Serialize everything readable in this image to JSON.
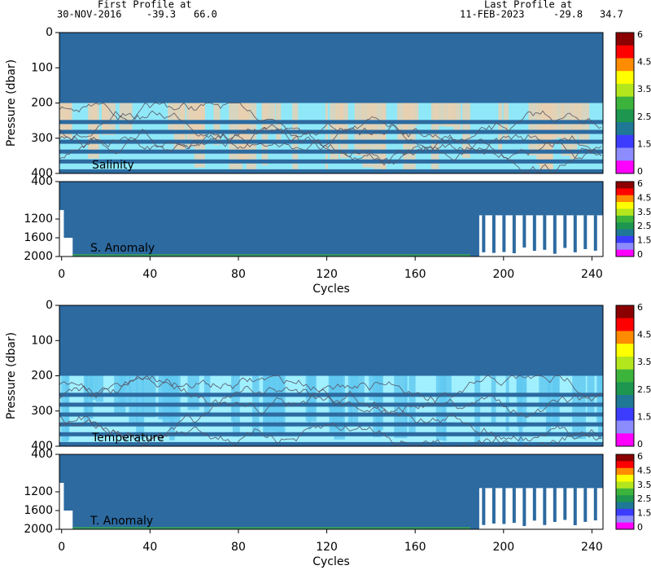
{
  "header": {
    "first_label": "First Profile at",
    "first_date": "30-NOV-2016",
    "first_lat": "-39.3",
    "first_lon": "66.0",
    "last_label": "Last Profile at",
    "last_date": "11-FEB-2023",
    "last_lat": "-29.8",
    "last_lon": "34.7"
  },
  "chart_data": [
    {
      "type": "contour",
      "label": "Salinity",
      "ylabel": "Pressure (dbar)",
      "ylim": [
        0,
        400
      ],
      "y_inverted": true,
      "yticks": [
        0,
        100,
        200,
        300,
        400
      ],
      "xlim": [
        -1,
        245
      ],
      "colorbar": {
        "ticks": [
          6,
          4.5,
          3.5,
          2.5,
          1.5,
          0
        ],
        "colors": [
          "#8b0000",
          "#ff0000",
          "#ff8c00",
          "#ffff00",
          "#b4e61e",
          "#3cb43c",
          "#1e9650",
          "#1e7896",
          "#3c3cff",
          "#8c8cff",
          "#ff00ff"
        ]
      },
      "band_colors": [
        "#8fe8f8",
        "#e8cfb0"
      ]
    },
    {
      "type": "contour",
      "label": "S. Anomaly",
      "ylim": [
        400,
        2000
      ],
      "y_inverted": true,
      "yticks": [
        400,
        1200,
        1600,
        2000
      ],
      "xlim": [
        -1,
        245
      ],
      "xticks": [
        0,
        40,
        80,
        120,
        160,
        200,
        240
      ],
      "xlabel": "Cycles",
      "colorbar": {
        "ticks": [
          6,
          4.5,
          3.5,
          2.5,
          1.5,
          0
        ],
        "colors": [
          "#8b0000",
          "#ff0000",
          "#ff8c00",
          "#ffff00",
          "#b4e61e",
          "#3cb43c",
          "#1e9650",
          "#1e7896",
          "#3c3cff",
          "#8c8cff",
          "#ff00ff"
        ]
      }
    },
    {
      "type": "contour",
      "label": "Temperature",
      "ylabel": "Pressure (dbar)",
      "ylim": [
        0,
        400
      ],
      "y_inverted": true,
      "yticks": [
        0,
        100,
        200,
        300,
        400
      ],
      "xlim": [
        -1,
        245
      ],
      "colorbar": {
        "ticks": [
          6,
          4.5,
          3.5,
          2.5,
          1.5,
          0
        ],
        "colors": [
          "#8b0000",
          "#ff0000",
          "#ff8c00",
          "#ffff00",
          "#b4e61e",
          "#3cb43c",
          "#1e9650",
          "#1e7896",
          "#3c3cff",
          "#8c8cff",
          "#ff00ff"
        ]
      },
      "band_colors": [
        "#a0f0ff",
        "#60c8f0"
      ]
    },
    {
      "type": "contour",
      "label": "T. Anomaly",
      "ylim": [
        400,
        2000
      ],
      "y_inverted": true,
      "yticks": [
        400,
        1200,
        1600,
        2000
      ],
      "xlim": [
        -1,
        245
      ],
      "xticks": [
        0,
        40,
        80,
        120,
        160,
        200,
        240
      ],
      "xlabel": "Cycles",
      "colorbar": {
        "ticks": [
          6,
          4.5,
          3.5,
          2.5,
          1.5,
          0
        ],
        "colors": [
          "#8b0000",
          "#ff0000",
          "#ff8c00",
          "#ffff00",
          "#b4e61e",
          "#3cb43c",
          "#1e9650",
          "#1e7896",
          "#3c3cff",
          "#8c8cff",
          "#ff00ff"
        ]
      }
    }
  ]
}
